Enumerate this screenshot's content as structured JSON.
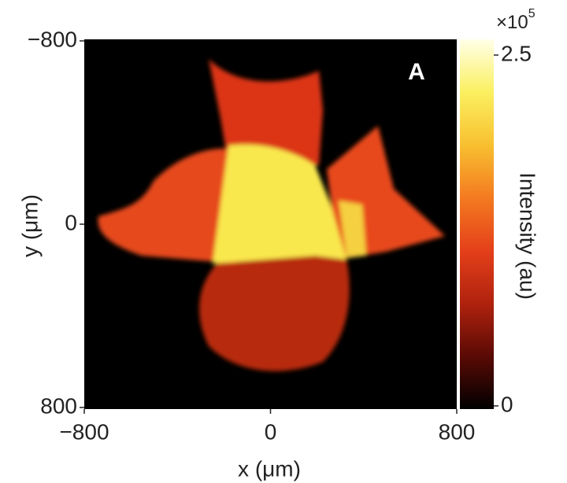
{
  "chart_data": {
    "type": "heatmap",
    "xlabel": "x (μm)",
    "ylabel": "y (μm)",
    "xlim": [
      -800,
      800
    ],
    "ylim": [
      -800,
      800
    ],
    "y_inverted": true,
    "xticks": [
      {
        "value": -800,
        "label": "−800"
      },
      0,
      800
    ],
    "yticks": [
      {
        "value": -800,
        "label": "−800"
      },
      0,
      800
    ],
    "annotation": "A",
    "colorbar": {
      "label": "Intensity (au)",
      "lim": [
        0,
        2.5
      ],
      "ticks": [
        0,
        2.5
      ],
      "multiplier": "×10",
      "exponent": "5",
      "colors": [
        "#000000",
        "#5a0a05",
        "#b0220e",
        "#e4401a",
        "#f47a20",
        "#f8c030",
        "#fbf060",
        "#ffffe8"
      ]
    }
  }
}
